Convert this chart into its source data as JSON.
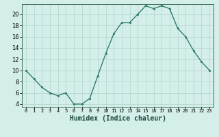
{
  "x": [
    0,
    1,
    2,
    3,
    4,
    5,
    6,
    7,
    8,
    9,
    10,
    11,
    12,
    13,
    14,
    15,
    16,
    17,
    18,
    19,
    20,
    21,
    22,
    23
  ],
  "y": [
    10,
    8.5,
    7,
    6,
    5.5,
    6,
    4,
    4,
    5,
    9,
    13,
    16.5,
    18.5,
    18.5,
    20,
    21.5,
    21,
    21.5,
    21,
    17.5,
    16,
    13.5,
    11.5,
    10
  ],
  "line_color": "#2e7d6a",
  "marker_color": "#2e7d6a",
  "bg_color": "#d4eeea",
  "grid_color": "#b8d8d2",
  "xlabel": "Humidex (Indice chaleur)",
  "ylim": [
    3.5,
    21.8
  ],
  "xlim": [
    -0.5,
    23.5
  ],
  "yticks": [
    4,
    6,
    8,
    10,
    12,
    14,
    16,
    18,
    20
  ],
  "xtick_labels": [
    "0",
    "1",
    "2",
    "3",
    "4",
    "5",
    "6",
    "7",
    "8",
    "9",
    "10",
    "11",
    "12",
    "13",
    "14",
    "15",
    "16",
    "17",
    "18",
    "19",
    "20",
    "21",
    "22",
    "23"
  ]
}
